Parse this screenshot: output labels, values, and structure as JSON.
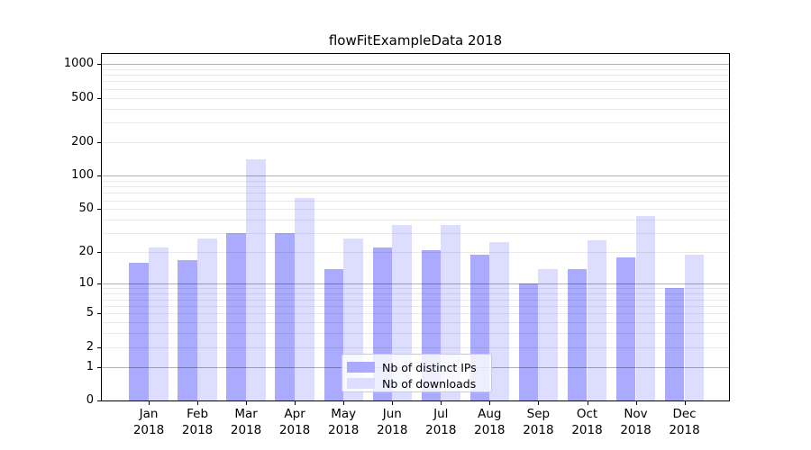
{
  "title": "flowFitExampleData 2018",
  "chart_data": {
    "type": "bar",
    "title": "flowFitExampleData 2018",
    "categories": [
      "Jan",
      "Feb",
      "Mar",
      "Apr",
      "May",
      "Jun",
      "Jul",
      "Aug",
      "Sep",
      "Oct",
      "Nov",
      "Dec"
    ],
    "category_year": "2018",
    "series": [
      {
        "name": "Nb of distinct IPs",
        "color": "#aaaaff",
        "values": [
          16,
          17,
          30,
          30,
          14,
          22,
          21,
          19,
          10,
          14,
          18,
          9
        ]
      },
      {
        "name": "Nb of downloads",
        "color": "#ddddff",
        "values": [
          22,
          27,
          140,
          63,
          27,
          36,
          36,
          25,
          14,
          26,
          43,
          19
        ]
      }
    ],
    "yscale": "log10(value+1)",
    "ytick_labels": [
      1000,
      500,
      200,
      100,
      50,
      20,
      10,
      5,
      2,
      1,
      0
    ],
    "ytick_major_gridlines": [
      1,
      10,
      100,
      1000
    ],
    "ylim": [
      0,
      1240
    ],
    "xlabel": "",
    "ylabel": "",
    "grid": "horizontal",
    "legend_position": "lower center"
  },
  "colors": {
    "background": "#ffffff",
    "bar_ips": "#aaaaff",
    "bar_downloads": "#ddddff",
    "grid_major": "rgba(0,0,0,0.30)",
    "grid_minor": "rgba(0,0,0,0.085)",
    "spine": "#000000",
    "legend_border": "#cccccc",
    "legend_background": "rgba(255,255,255,0.8)",
    "text": "#000000"
  }
}
